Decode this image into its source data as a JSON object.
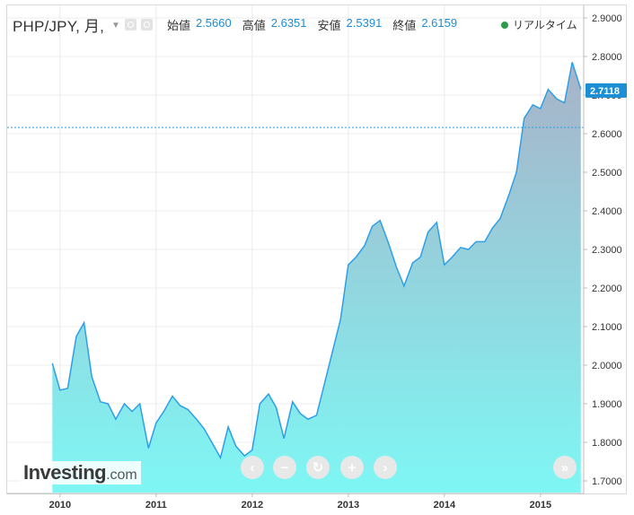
{
  "header": {
    "symbol": "PHP/JPY, 月,",
    "ohlc": [
      {
        "label": "始値",
        "value": "2.5660"
      },
      {
        "label": "高値",
        "value": "2.6351"
      },
      {
        "label": "安値",
        "value": "2.5391"
      },
      {
        "label": "終値",
        "value": "2.6159"
      }
    ],
    "realtime_label": "リアルタイム"
  },
  "logo": {
    "main": "Investing",
    "suffix": ".com"
  },
  "nav_buttons": [
    {
      "name": "scroll-left-button",
      "icon": "chevron-left-icon",
      "glyph": "‹"
    },
    {
      "name": "zoom-out-button",
      "icon": "minus-icon",
      "glyph": "−"
    },
    {
      "name": "reset-button",
      "icon": "refresh-icon",
      "glyph": "↻"
    },
    {
      "name": "zoom-in-button",
      "icon": "plus-icon",
      "glyph": "+"
    },
    {
      "name": "scroll-right-button",
      "icon": "chevron-right-icon",
      "glyph": "›"
    },
    {
      "name": "go-to-latest-button",
      "icon": "double-chevron-right-icon",
      "glyph": "»"
    }
  ],
  "colors": {
    "line": "#2e9fe6",
    "fill_top": "#a8b2c8",
    "fill_bottom": "#7ef7f4",
    "price_tag": "#1c8ed4",
    "ref_line": "#2e9fe6",
    "text_value": "#1c8ed4",
    "realtime_dot": "#2c9c4a"
  },
  "chart_data": {
    "type": "area",
    "title": "PHP/JPY, 月,",
    "xlabel": "",
    "ylabel": "",
    "x_ticks": [
      "2010",
      "2011",
      "2012",
      "2013",
      "2014",
      "2015"
    ],
    "x_tick_values": [
      2010.0,
      2011.0,
      2012.0,
      2013.0,
      2014.0,
      2015.0
    ],
    "y_ticks": [
      "1.7000",
      "1.8000",
      "1.9000",
      "2.0000",
      "2.1000",
      "2.2000",
      "2.3000",
      "2.4000",
      "2.5000",
      "2.6000",
      "2.7000",
      "2.8000",
      "2.9000"
    ],
    "ylim": [
      1.7,
      2.9
    ],
    "xlim": [
      2009.45,
      2015.45
    ],
    "grid": true,
    "last_price_label": "2.7118",
    "last_price": 2.7118,
    "reference_line": 2.6159,
    "series": [
      {
        "x": [
          2009.92,
          2010.0,
          2010.08,
          2010.17,
          2010.25,
          2010.33,
          2010.42,
          2010.5,
          2010.58,
          2010.67,
          2010.75,
          2010.83,
          2010.92,
          2011.0,
          2011.08,
          2011.17,
          2011.25,
          2011.33,
          2011.42,
          2011.5,
          2011.58,
          2011.67,
          2011.75,
          2011.83,
          2011.92,
          2012.0,
          2012.08,
          2012.17,
          2012.25,
          2012.33,
          2012.42,
          2012.5,
          2012.58,
          2012.67,
          2012.75,
          2012.83,
          2012.92,
          2013.0,
          2013.08,
          2013.17,
          2013.25,
          2013.33,
          2013.42,
          2013.5,
          2013.58,
          2013.67,
          2013.75,
          2013.83,
          2013.92,
          2014.0,
          2014.08,
          2014.17,
          2014.25,
          2014.33,
          2014.42,
          2014.5,
          2014.58,
          2014.67,
          2014.75,
          2014.83,
          2014.92,
          2015.0,
          2015.08,
          2015.17,
          2015.25,
          2015.33,
          2015.42
        ],
        "values": [
          2.005,
          1.935,
          1.94,
          2.075,
          2.11,
          1.97,
          1.905,
          1.9,
          1.86,
          1.9,
          1.88,
          1.9,
          1.785,
          1.85,
          1.88,
          1.92,
          1.895,
          1.885,
          1.86,
          1.835,
          1.8,
          1.76,
          1.84,
          1.79,
          1.765,
          1.78,
          1.9,
          1.925,
          1.89,
          1.81,
          1.905,
          1.875,
          1.86,
          1.87,
          1.95,
          2.03,
          2.12,
          2.26,
          2.28,
          2.31,
          2.36,
          2.375,
          2.315,
          2.255,
          2.205,
          2.265,
          2.28,
          2.345,
          2.37,
          2.26,
          2.28,
          2.305,
          2.3,
          2.32,
          2.32,
          2.355,
          2.38,
          2.44,
          2.5,
          2.64,
          2.675,
          2.665,
          2.715,
          2.69,
          2.68,
          2.785,
          2.715
        ]
      }
    ]
  }
}
